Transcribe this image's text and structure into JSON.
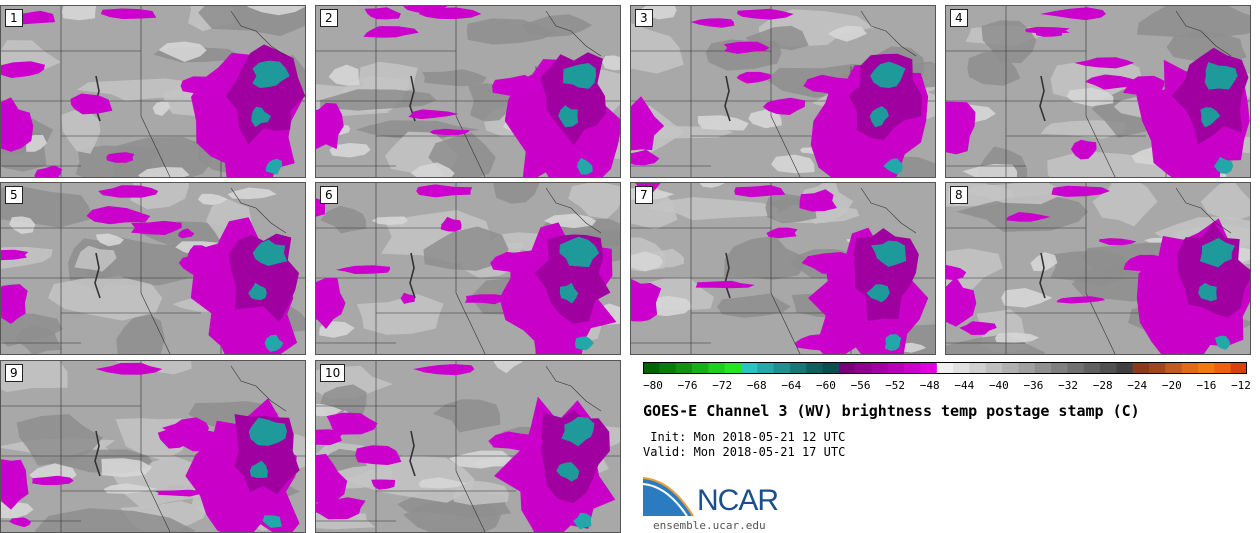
{
  "panels": [
    {
      "label": "1"
    },
    {
      "label": "2"
    },
    {
      "label": "3"
    },
    {
      "label": "4"
    },
    {
      "label": "5"
    },
    {
      "label": "6"
    },
    {
      "label": "7"
    },
    {
      "label": "8"
    },
    {
      "label": "9"
    },
    {
      "label": "10"
    }
  ],
  "colorbar": {
    "ticks": [
      "−80",
      "−76",
      "−72",
      "−68",
      "−64",
      "−60",
      "−56",
      "−52",
      "−48",
      "−44",
      "−40",
      "−36",
      "−32",
      "−28",
      "−24",
      "−20",
      "−16",
      "−12"
    ],
    "colors": [
      "#006400",
      "#0a7a0a",
      "#119211",
      "#16b016",
      "#1ccf1c",
      "#22e622",
      "#2ac4c4",
      "#24a8a8",
      "#1e9090",
      "#177878",
      "#106060",
      "#0b5050",
      "#7a007a",
      "#8f008f",
      "#a300a3",
      "#b800b8",
      "#cc00cc",
      "#e000e0",
      "#f0f0f0",
      "#e0e0e0",
      "#d0d0d0",
      "#c0c0c0",
      "#b0b0b0",
      "#a0a0a0",
      "#909090",
      "#808080",
      "#707070",
      "#606060",
      "#505050",
      "#404040",
      "#8b3a1a",
      "#a0461e",
      "#c05a20",
      "#e06a18",
      "#f07a10",
      "#f06010",
      "#d84010"
    ]
  },
  "title": "GOES-E Channel 3 (WV) brightness temp postage stamp (C)",
  "init_line": " Init: Mon 2018-05-21 12 UTC",
  "valid_line": "Valid: Mon 2018-05-21 17 UTC",
  "logo_text": "NCAR",
  "site": "ensemble.ucar.edu"
}
